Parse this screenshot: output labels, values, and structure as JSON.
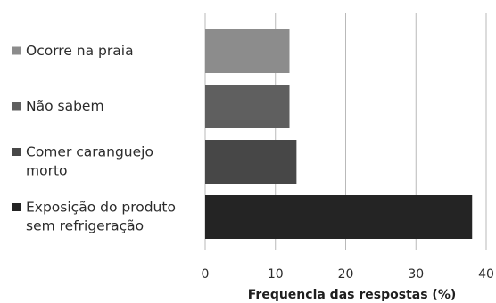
{
  "chart_data": {
    "type": "bar",
    "orientation": "horizontal",
    "categories": [
      [
        "Ocorre na praia"
      ],
      [
        "Não sabem"
      ],
      [
        "Comer caranguejo",
        "morto"
      ],
      [
        "Exposição do produto",
        "sem refrigeração"
      ]
    ],
    "values": [
      12,
      12,
      13,
      38
    ],
    "bar_colors": [
      "#8c8c8c",
      "#5f5f5f",
      "#474747",
      "#242424"
    ],
    "xlabel": "Frequencia das respostas (%)",
    "ylabel": "",
    "xlim": [
      0,
      40
    ],
    "xticks": [
      0,
      10,
      20,
      30,
      40
    ],
    "grid": "vertical",
    "legend": "left"
  }
}
